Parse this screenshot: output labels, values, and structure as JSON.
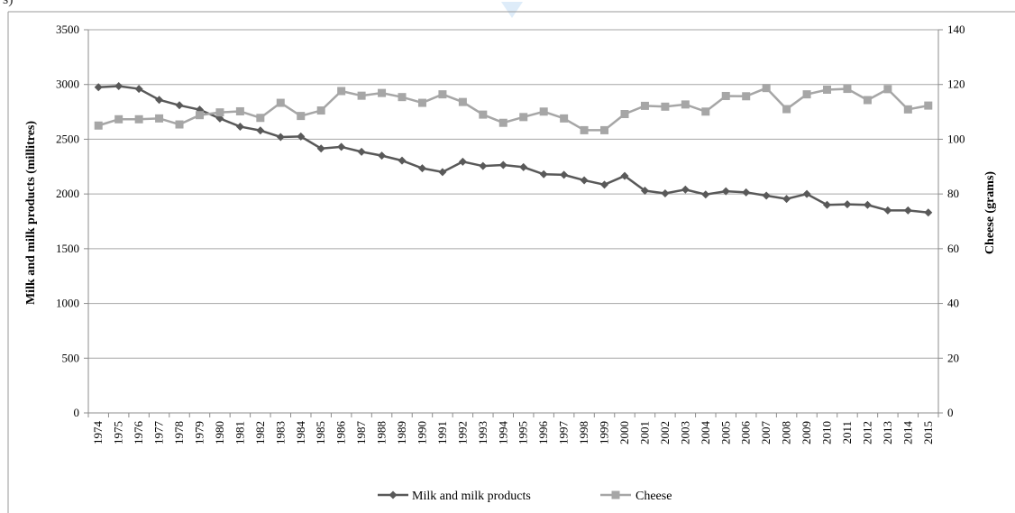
{
  "corner_fragment": "s)",
  "chart_data": {
    "type": "line",
    "title": "",
    "categories": [
      "1974",
      "1975",
      "1976",
      "1977",
      "1978",
      "1979",
      "1980",
      "1981",
      "1982",
      "1983",
      "1984",
      "1985",
      "1986",
      "1987",
      "1988",
      "1989",
      "1990",
      "1991",
      "1992",
      "1993",
      "1994",
      "1995",
      "1996",
      "1997",
      "1998",
      "1999",
      "2000",
      "2001",
      "2002",
      "2003",
      "2004",
      "2005",
      "2006",
      "2007",
      "2008",
      "2009",
      "2010",
      "2011",
      "2012",
      "2013",
      "2014",
      "2015"
    ],
    "y_left": {
      "label": "Milk and milk products (millitres)",
      "ticks": [
        0,
        500,
        1000,
        1500,
        2000,
        2500,
        3000,
        3500
      ],
      "min": 0,
      "max": 3500
    },
    "y_right": {
      "label": "Cheese (grams)",
      "ticks": [
        0,
        20,
        40,
        60,
        80,
        100,
        120,
        140
      ],
      "min": 0,
      "max": 140
    },
    "grid": true,
    "legend_position": "bottom",
    "series": [
      {
        "name": "Milk and milk products",
        "axis": "left",
        "marker": "diamond",
        "color": "#595959",
        "values": [
          2975,
          2985,
          2960,
          2860,
          2810,
          2770,
          2690,
          2615,
          2580,
          2520,
          2525,
          2415,
          2430,
          2385,
          2350,
          2305,
          2235,
          2200,
          2295,
          2255,
          2265,
          2245,
          2180,
          2175,
          2125,
          2085,
          2165,
          2030,
          2005,
          2040,
          1995,
          2025,
          2015,
          1985,
          1955,
          2000,
          1900,
          1905,
          1900,
          1850,
          1850,
          1830
        ]
      },
      {
        "name": "Cheese",
        "axis": "right",
        "marker": "square",
        "color": "#a6a6a6",
        "values": [
          105,
          107.3,
          107.3,
          107.6,
          105.4,
          108.8,
          109.8,
          110.2,
          107.8,
          113.3,
          108.5,
          110.5,
          117.6,
          115.9,
          116.9,
          115.4,
          113.3,
          116.4,
          113.6,
          109,
          106,
          108.1,
          110.1,
          107.6,
          103.3,
          103.3,
          109.2,
          112.2,
          111.9,
          112.7,
          110.1,
          115.8,
          115.7,
          118.7,
          111,
          116.4,
          118.1,
          118.4,
          114.3,
          118.3,
          110.9,
          112.3
        ]
      }
    ]
  }
}
